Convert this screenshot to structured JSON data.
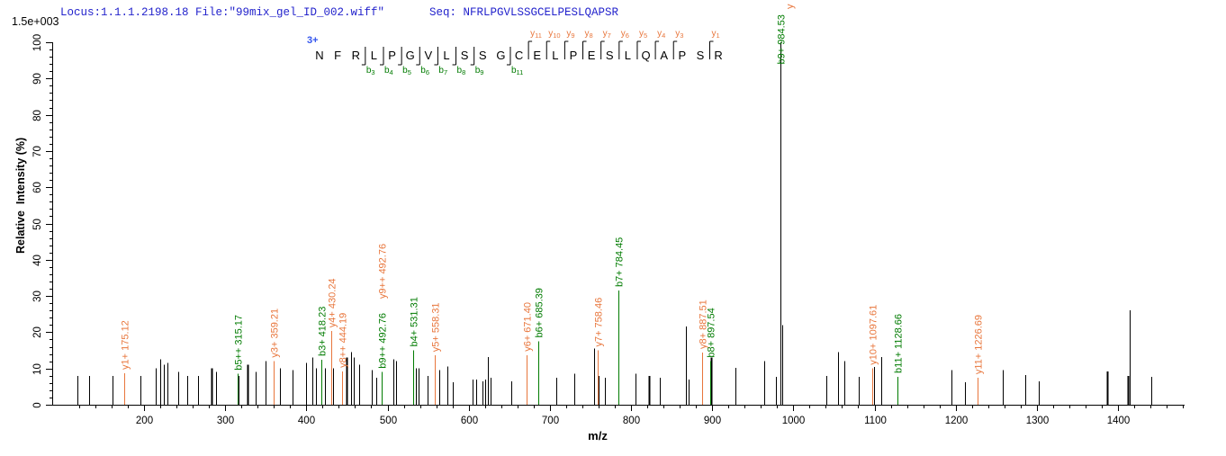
{
  "header": {
    "locus_file": "Locus:1.1.1.2198.18 File:\"99mix_gel_ID_002.wiff\"",
    "seq": "Seq: NFRLPGVLSSGCELPESLQAPSR",
    "max_intensity": "1.5e+003"
  },
  "colors": {
    "header_blue": "#2323CC",
    "charge_blue": "#3355EE",
    "y_ion_orange": "#E8763C",
    "b_ion_green": "#007B00",
    "peak_black": "#000000"
  },
  "chart_data": {
    "type": "bar",
    "subtype": "mass-spectrum",
    "title": "",
    "xlabel": "m/z",
    "ylabel": "Relative  Intensity (%)",
    "x_range": [
      87,
      1481
    ],
    "y_range": [
      0,
      100
    ],
    "x_major_ticks": [
      200,
      300,
      400,
      500,
      600,
      700,
      800,
      900,
      1000,
      1100,
      1200,
      1300,
      1400
    ],
    "x_minor_step": 20,
    "y_major_ticks": [
      0,
      10,
      20,
      30,
      40,
      50,
      60,
      70,
      80,
      90,
      100
    ],
    "y_minor_step": 2,
    "grid": false,
    "precursor_charge": "3+",
    "sequence": "NFRLPGVLSSGCELPESLQAPSR",
    "b_marks": [
      {
        "boundary": 3,
        "sub": "3"
      },
      {
        "boundary": 4,
        "sub": "4"
      },
      {
        "boundary": 5,
        "sub": "5"
      },
      {
        "boundary": 6,
        "sub": "6"
      },
      {
        "boundary": 7,
        "sub": "7"
      },
      {
        "boundary": 8,
        "sub": "8"
      },
      {
        "boundary": 9,
        "sub": "9"
      },
      {
        "boundary": 11,
        "sub": "11"
      }
    ],
    "y_marks": [
      {
        "boundary": 12,
        "sub": "11"
      },
      {
        "boundary": 13,
        "sub": "10"
      },
      {
        "boundary": 14,
        "sub": "9"
      },
      {
        "boundary": 15,
        "sub": "8"
      },
      {
        "boundary": 16,
        "sub": "7"
      },
      {
        "boundary": 17,
        "sub": "6"
      },
      {
        "boundary": 18,
        "sub": "5"
      },
      {
        "boundary": 19,
        "sub": "4"
      },
      {
        "boundary": 20,
        "sub": "3"
      },
      {
        "boundary": 22,
        "sub": "1"
      }
    ],
    "labeled_peaks": [
      {
        "text": "y1+ 175.12",
        "mz": 175.12,
        "pct": 8.7,
        "type": "y"
      },
      {
        "text": "b5++ 315.17",
        "mz": 315.17,
        "pct": 8.5,
        "type": "b"
      },
      {
        "text": "y3+ 359.21",
        "mz": 359.21,
        "pct": 12,
        "type": "y"
      },
      {
        "text": "b3+ 418.23",
        "mz": 418.23,
        "pct": 12.4,
        "type": "b"
      },
      {
        "text": "y4+ 430.24",
        "mz": 430.24,
        "pct": 20.3,
        "type": "y"
      },
      {
        "text": "y8++ 444.19",
        "mz": 444.19,
        "pct": 9.2,
        "type": "y"
      },
      {
        "text": "b9++ 492.76",
        "mz": 492.76,
        "pct": 9,
        "type": "b",
        "extra_label": {
          "text": "y9++ 492.76",
          "type": "y"
        }
      },
      {
        "text": "b4+ 531.31",
        "mz": 531.31,
        "pct": 15,
        "type": "b"
      },
      {
        "text": "y5+ 558.31",
        "mz": 558.31,
        "pct": 13.6,
        "type": "y"
      },
      {
        "text": "y6+ 671.40",
        "mz": 671.4,
        "pct": 13.7,
        "type": "y"
      },
      {
        "text": "b6+ 685.39",
        "mz": 685.39,
        "pct": 17.5,
        "type": "b"
      },
      {
        "text": "y7+ 758.46",
        "mz": 758.46,
        "pct": 15,
        "type": "y"
      },
      {
        "text": "b7+ 784.45",
        "mz": 784.45,
        "pct": 31.5,
        "type": "b"
      },
      {
        "text": "y8+ 887.51",
        "mz": 887.51,
        "pct": 14.4,
        "type": "y"
      },
      {
        "text": "b8+ 897.54",
        "mz": 897.54,
        "pct": 12,
        "type": "b"
      },
      {
        "text": "b9+ 984.53",
        "mz": 984.53,
        "pct": 100,
        "type": "b",
        "stem": "black"
      },
      {
        "text": "y10+ 1097.61",
        "mz": 1097.61,
        "pct": 10,
        "type": "y"
      },
      {
        "text": "b11+ 1128.66",
        "mz": 1128.66,
        "pct": 7.7,
        "type": "b"
      },
      {
        "text": "y11+ 1226.69",
        "mz": 1226.69,
        "pct": 7.4,
        "type": "y"
      }
    ],
    "clipped_label_fragment": {
      "text": "y",
      "type": "y"
    },
    "unlabeled_peaks": [
      [
        118,
        8
      ],
      [
        132,
        8
      ],
      [
        161,
        8
      ],
      [
        196,
        8
      ],
      [
        214,
        10
      ],
      [
        220,
        12.5
      ],
      [
        224,
        11
      ],
      [
        229,
        11.5
      ],
      [
        242,
        9
      ],
      [
        253,
        8
      ],
      [
        267,
        8
      ],
      [
        283,
        10,
        1
      ],
      [
        289,
        9
      ],
      [
        317,
        8
      ],
      [
        327,
        11,
        1
      ],
      [
        338,
        9
      ],
      [
        350,
        12
      ],
      [
        368,
        10
      ],
      [
        383,
        9.5
      ],
      [
        400,
        11.5
      ],
      [
        407,
        13
      ],
      [
        412,
        10
      ],
      [
        423,
        10
      ],
      [
        433,
        10
      ],
      [
        450,
        13,
        1
      ],
      [
        455,
        14.5
      ],
      [
        458,
        13
      ],
      [
        465,
        11
      ],
      [
        481,
        9.5
      ],
      [
        486,
        7.4
      ],
      [
        507,
        12.5
      ],
      [
        510,
        12
      ],
      [
        535,
        10
      ],
      [
        538,
        10
      ],
      [
        549,
        8
      ],
      [
        564,
        9.5
      ],
      [
        574,
        10.5
      ],
      [
        580,
        6.2
      ],
      [
        605,
        7
      ],
      [
        609,
        7
      ],
      [
        617,
        6.5
      ],
      [
        620,
        7
      ],
      [
        624,
        13.2
      ],
      [
        627,
        7.5
      ],
      [
        652,
        6.5
      ],
      [
        708,
        7.5
      ],
      [
        730,
        8.5
      ],
      [
        754.8,
        15.5
      ],
      [
        760,
        8
      ],
      [
        768,
        7.5
      ],
      [
        806,
        8.5
      ],
      [
        822,
        8,
        1
      ],
      [
        835,
        7.5
      ],
      [
        868,
        21.6
      ],
      [
        870.5,
        7
      ],
      [
        898.8,
        13,
        1
      ],
      [
        928.6,
        10.2
      ],
      [
        964,
        12
      ],
      [
        978,
        7.7
      ],
      [
        985.8,
        22
      ],
      [
        1040.6,
        7.9
      ],
      [
        1055,
        14.5
      ],
      [
        1062.7,
        12
      ],
      [
        1080.5,
        7.7
      ],
      [
        1099,
        10.4
      ],
      [
        1108,
        13.2
      ],
      [
        1195,
        9.5
      ],
      [
        1211,
        6.2
      ],
      [
        1258,
        9.5
      ],
      [
        1286,
        8.2
      ],
      [
        1302,
        6.5
      ],
      [
        1386.6,
        9.2,
        1
      ],
      [
        1412,
        8,
        1
      ],
      [
        1414.3,
        26
      ],
      [
        1441,
        7.7
      ]
    ]
  }
}
